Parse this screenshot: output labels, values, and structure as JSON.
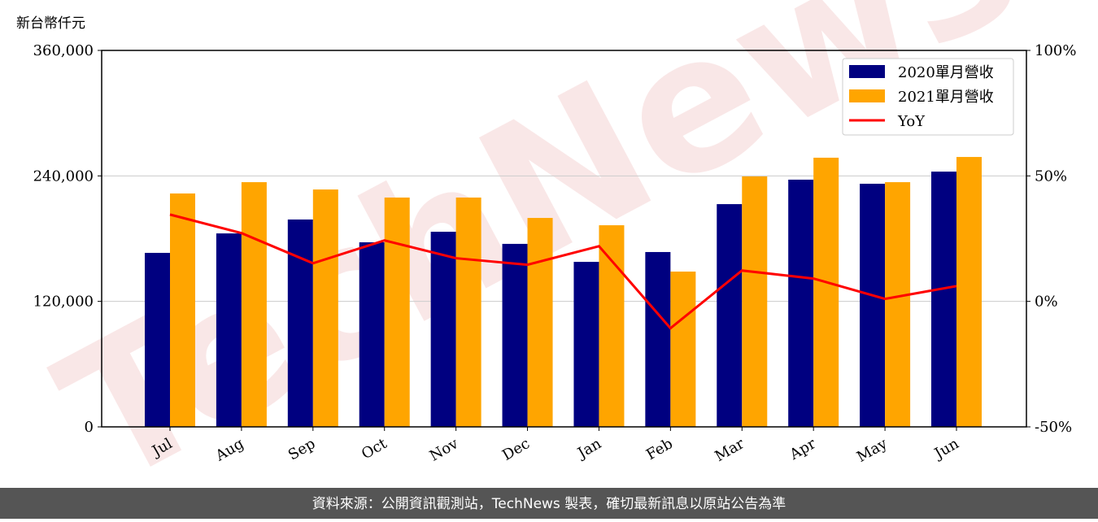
{
  "chart_data": {
    "type": "bar_line",
    "y_label": "新台幣仟元",
    "watermark": "TechNews",
    "footer": "資料來源：公開資訊觀測站，TechNews 製表，確切最新訊息以原站公告為準",
    "categories": [
      "Jul",
      "Aug",
      "Sep",
      "Oct",
      "Nov",
      "Dec",
      "Jan",
      "Feb",
      "Mar",
      "Apr",
      "May",
      "Jun"
    ],
    "series": [
      {
        "name": "2020單月營收",
        "color": "#000080",
        "type": "bar",
        "values": [
          166400,
          185000,
          198300,
          176500,
          186600,
          175000,
          157800,
          167200,
          213000,
          236400,
          232500,
          244100
        ]
      },
      {
        "name": "2021單月營收",
        "color": "#ffa500",
        "type": "bar",
        "values": [
          223200,
          234000,
          227000,
          219300,
          219300,
          199800,
          192800,
          148500,
          239500,
          257400,
          234000,
          258100
        ]
      },
      {
        "name": "YoY",
        "color": "#ff0000",
        "type": "line",
        "axis": "y2",
        "values": [
          34.6,
          27.2,
          15.2,
          24.3,
          17.2,
          14.6,
          22.0,
          -10.7,
          12.3,
          9.1,
          1.0,
          6.1
        ]
      }
    ],
    "ylim": [
      0,
      360000
    ],
    "yticks": [
      0,
      {
        "value": 120000,
        "label": "120,000"
      },
      {
        "value": 240000,
        "label": "240,000"
      },
      {
        "value": 360000,
        "label": "360,000"
      }
    ],
    "y2lim": [
      -50,
      100
    ],
    "y2ticks": [
      {
        "value": -50,
        "label": "-50%"
      },
      {
        "value": 0,
        "label": "0%"
      },
      {
        "value": 50,
        "label": "50%"
      },
      {
        "value": 100,
        "label": "100%"
      }
    ],
    "grid": true,
    "legend": "upper right"
  }
}
